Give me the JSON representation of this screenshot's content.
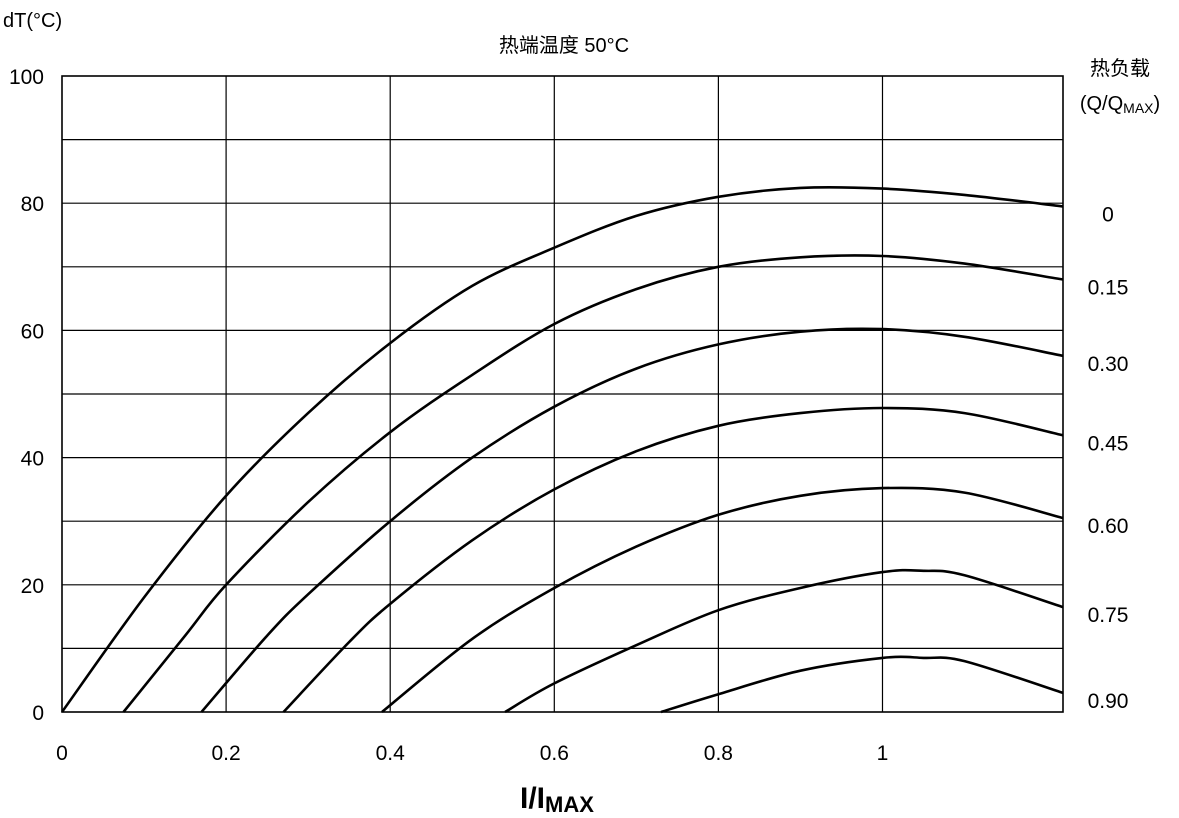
{
  "chart_data": {
    "type": "line",
    "title": "热端温度 50°C",
    "ylabel": "dT(°C)",
    "xlabel_main": "I/I",
    "xlabel_sub": "MAX",
    "legend_title": "热负载",
    "legend_sub_main": "(Q/Q",
    "legend_sub_sub": "MAX",
    "legend_sub_end": ")",
    "xlim": [
      0,
      1.22
    ],
    "ylim": [
      0,
      100
    ],
    "x_ticks": [
      0,
      0.2,
      0.4,
      0.6,
      0.8,
      1
    ],
    "x_tick_labels": [
      "0",
      "0.2",
      "0.4",
      "0.6",
      "0.8",
      "1"
    ],
    "y_ticks": [
      0,
      20,
      40,
      60,
      80,
      100
    ],
    "y_tick_labels": [
      "0",
      "20",
      "40",
      "60",
      "80",
      "100"
    ],
    "grid": true,
    "series": [
      {
        "name": "0",
        "x": [
          0,
          0.1,
          0.2,
          0.3,
          0.4,
          0.5,
          0.6,
          0.7,
          0.8,
          0.9,
          1.0,
          1.1,
          1.22
        ],
        "y": [
          0,
          18,
          34,
          47,
          58,
          67,
          73,
          78,
          81,
          82.4,
          82.3,
          81.3,
          79.5
        ]
      },
      {
        "name": "0.15",
        "x": [
          0.075,
          0.15,
          0.2,
          0.3,
          0.4,
          0.5,
          0.6,
          0.7,
          0.8,
          0.9,
          1.0,
          1.1,
          1.22
        ],
        "y": [
          0,
          12,
          20,
          33,
          44,
          53,
          61,
          66.5,
          70,
          71.5,
          71.7,
          70.5,
          68
        ]
      },
      {
        "name": "0.30",
        "x": [
          0.17,
          0.25,
          0.3,
          0.4,
          0.5,
          0.6,
          0.7,
          0.8,
          0.9,
          1.0,
          1.1,
          1.22
        ],
        "y": [
          0,
          12,
          18.5,
          30,
          40,
          48,
          54,
          57.8,
          59.8,
          60.2,
          59,
          56
        ]
      },
      {
        "name": "0.45",
        "x": [
          0.27,
          0.35,
          0.4,
          0.5,
          0.6,
          0.7,
          0.8,
          0.9,
          1.0,
          1.1,
          1.22
        ],
        "y": [
          0,
          11,
          17,
          27,
          35,
          41,
          45,
          47,
          47.8,
          47,
          43.5
        ]
      },
      {
        "name": "0.60",
        "x": [
          0.39,
          0.5,
          0.6,
          0.7,
          0.8,
          0.9,
          1.0,
          1.1,
          1.22
        ],
        "y": [
          0,
          11.5,
          19.5,
          26,
          31,
          34,
          35.2,
          34.5,
          30.5
        ]
      },
      {
        "name": "0.75",
        "x": [
          0.54,
          0.6,
          0.7,
          0.8,
          0.9,
          1.0,
          1.05,
          1.1,
          1.22
        ],
        "y": [
          0,
          4.5,
          10.5,
          16,
          19.5,
          22,
          22.2,
          21.5,
          16.5
        ]
      },
      {
        "name": "0.90",
        "x": [
          0.73,
          0.8,
          0.9,
          1.0,
          1.05,
          1.1,
          1.22
        ],
        "y": [
          0,
          2.8,
          6.5,
          8.5,
          8.5,
          8,
          3
        ]
      }
    ]
  }
}
